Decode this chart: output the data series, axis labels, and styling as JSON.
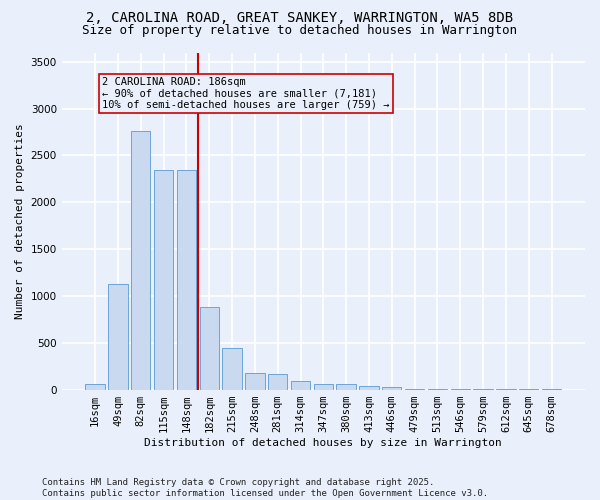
{
  "title_line1": "2, CAROLINA ROAD, GREAT SANKEY, WARRINGTON, WA5 8DB",
  "title_line2": "Size of property relative to detached houses in Warrington",
  "xlabel": "Distribution of detached houses by size in Warrington",
  "ylabel": "Number of detached properties",
  "bar_color": "#c9d9f0",
  "bar_edge_color": "#5b9bd5",
  "categories": [
    "16sqm",
    "49sqm",
    "82sqm",
    "115sqm",
    "148sqm",
    "182sqm",
    "215sqm",
    "248sqm",
    "281sqm",
    "314sqm",
    "347sqm",
    "380sqm",
    "413sqm",
    "446sqm",
    "479sqm",
    "513sqm",
    "546sqm",
    "579sqm",
    "612sqm",
    "645sqm",
    "678sqm"
  ],
  "values": [
    55,
    1130,
    2760,
    2350,
    2350,
    880,
    440,
    175,
    165,
    90,
    60,
    55,
    40,
    30,
    10,
    10,
    5,
    5,
    3,
    2,
    2
  ],
  "vline_color": "#cc0000",
  "vline_index": 5,
  "annotation_text": "2 CAROLINA ROAD: 186sqm\n← 90% of detached houses are smaller (7,181)\n10% of semi-detached houses are larger (759) →",
  "annotation_box_color": "#cc0000",
  "ylim": [
    0,
    3600
  ],
  "yticks": [
    0,
    500,
    1000,
    1500,
    2000,
    2500,
    3000,
    3500
  ],
  "background_color": "#eaf0fb",
  "grid_color": "#ffffff",
  "footer_line1": "Contains HM Land Registry data © Crown copyright and database right 2025.",
  "footer_line2": "Contains public sector information licensed under the Open Government Licence v3.0.",
  "title_fontsize": 10,
  "subtitle_fontsize": 9,
  "axis_label_fontsize": 8,
  "tick_fontsize": 7.5,
  "annotation_fontsize": 7.5,
  "footer_fontsize": 6.5
}
